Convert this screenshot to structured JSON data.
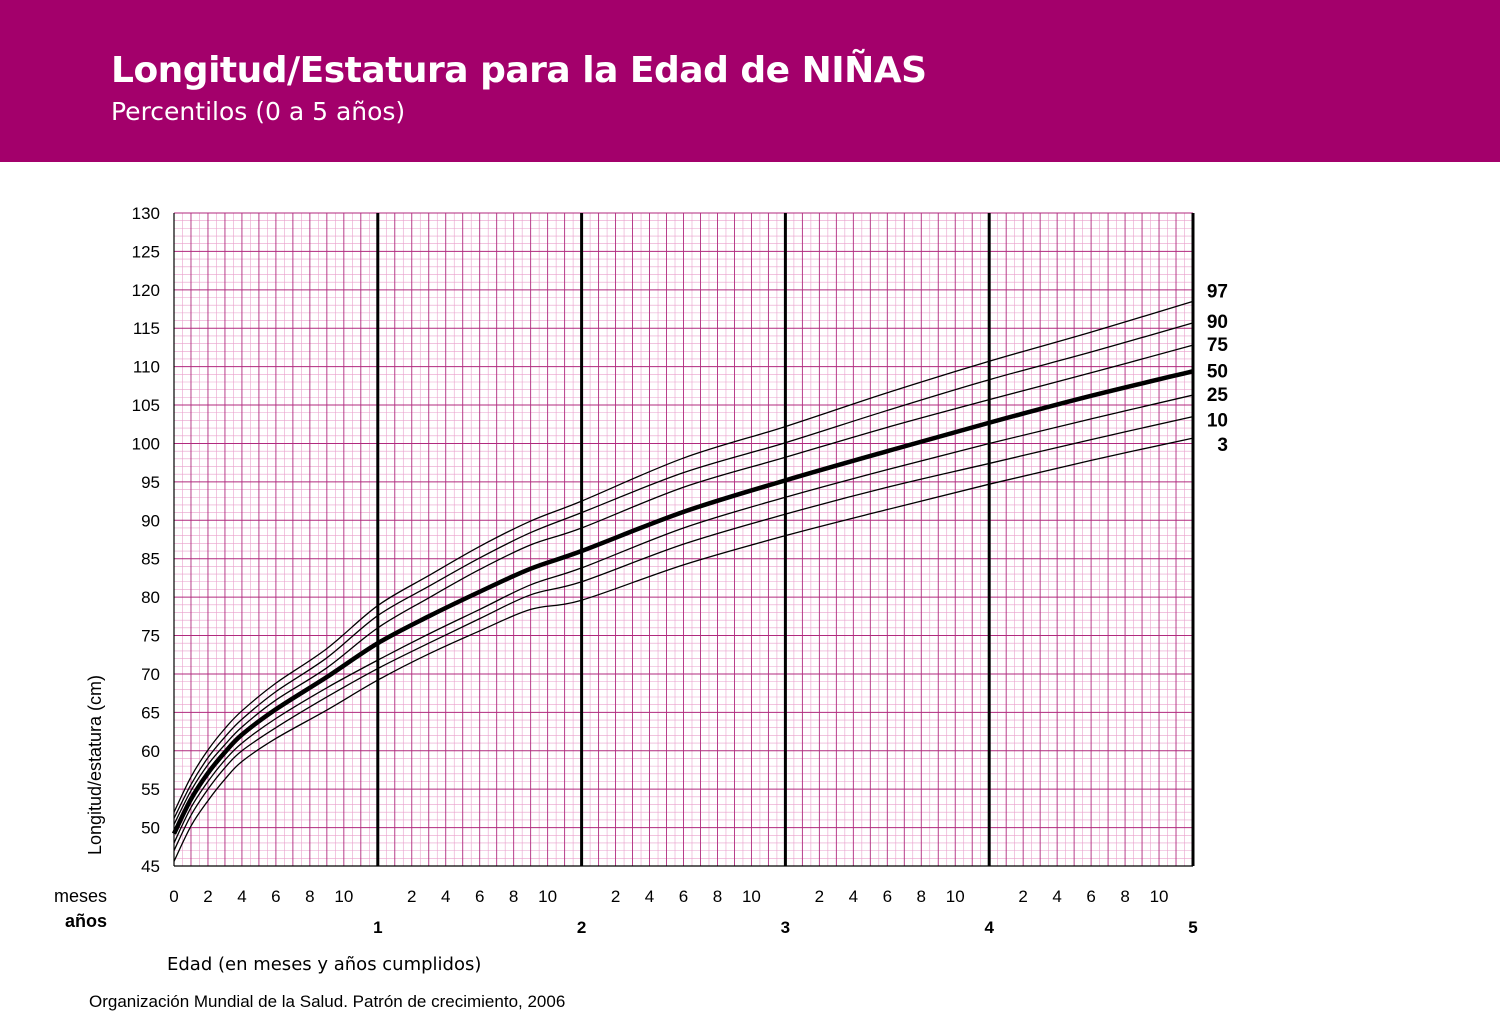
{
  "colors": {
    "header_bg": "#a3006b",
    "grid_minor": "#e9a0cc",
    "grid_major": "#b02a7e",
    "curve": "#000000"
  },
  "header": {
    "title": "Longitud/Estatura para la Edad de NIÑAS",
    "subtitle": "Percentilos (0 a 5 años)"
  },
  "footer": {
    "source": "Organización Mundial de la Salud. Patrón de crecimiento, 2006"
  },
  "chart_data": {
    "type": "line",
    "ylabel": "Longitud/estatura (cm)",
    "xlabel": "Edad (en meses y años cumplidos)",
    "x_row_label_months": "meses",
    "x_row_label_years": "años",
    "xlim": [
      0,
      60
    ],
    "ylim": [
      45,
      130
    ],
    "y_ticks": [
      45,
      50,
      55,
      60,
      65,
      70,
      75,
      80,
      85,
      90,
      95,
      100,
      105,
      110,
      115,
      120,
      125,
      130
    ],
    "month_tick_labels": [
      {
        "month": 0,
        "label": "0"
      },
      {
        "month": 2,
        "label": "2"
      },
      {
        "month": 4,
        "label": "4"
      },
      {
        "month": 6,
        "label": "6"
      },
      {
        "month": 8,
        "label": "8"
      },
      {
        "month": 10,
        "label": "10"
      },
      {
        "month": 14,
        "label": "2"
      },
      {
        "month": 16,
        "label": "4"
      },
      {
        "month": 18,
        "label": "6"
      },
      {
        "month": 20,
        "label": "8"
      },
      {
        "month": 22,
        "label": "10"
      },
      {
        "month": 26,
        "label": "2"
      },
      {
        "month": 28,
        "label": "4"
      },
      {
        "month": 30,
        "label": "6"
      },
      {
        "month": 32,
        "label": "8"
      },
      {
        "month": 34,
        "label": "10"
      },
      {
        "month": 38,
        "label": "2"
      },
      {
        "month": 40,
        "label": "4"
      },
      {
        "month": 42,
        "label": "6"
      },
      {
        "month": 44,
        "label": "8"
      },
      {
        "month": 46,
        "label": "10"
      },
      {
        "month": 50,
        "label": "2"
      },
      {
        "month": 52,
        "label": "4"
      },
      {
        "month": 54,
        "label": "6"
      },
      {
        "month": 56,
        "label": "8"
      },
      {
        "month": 58,
        "label": "10"
      }
    ],
    "year_tick_labels": [
      {
        "month": 12,
        "label": "1"
      },
      {
        "month": 24,
        "label": "2"
      },
      {
        "month": 36,
        "label": "3"
      },
      {
        "month": 48,
        "label": "4"
      },
      {
        "month": 60,
        "label": "5"
      }
    ],
    "grid": true,
    "x": [
      0,
      1,
      2,
      3,
      4,
      6,
      9,
      12,
      15,
      18,
      21,
      24,
      30,
      36,
      42,
      48,
      54,
      60
    ],
    "series": [
      {
        "name": "97",
        "bold": false,
        "values": [
          52.0,
          56.6,
          60.1,
          62.9,
          65.2,
          68.8,
          73.3,
          78.9,
          82.8,
          86.6,
          89.9,
          92.5,
          98.1,
          102.2,
          106.6,
          110.7,
          114.5,
          118.5
        ]
      },
      {
        "name": "90",
        "bold": false,
        "values": [
          51.2,
          55.6,
          59.1,
          61.8,
          64.1,
          67.7,
          72.1,
          77.6,
          81.4,
          85.1,
          88.4,
          91.0,
          96.2,
          100.1,
          104.3,
          108.3,
          111.9,
          115.7
        ]
      },
      {
        "name": "75",
        "bold": false,
        "values": [
          50.4,
          54.8,
          58.2,
          60.8,
          63.1,
          66.6,
          70.8,
          76.0,
          79.9,
          83.6,
          86.8,
          89.0,
          94.3,
          98.2,
          102.1,
          105.7,
          109.2,
          112.8
        ]
      },
      {
        "name": "50",
        "bold": true,
        "values": [
          49.2,
          53.7,
          57.1,
          59.8,
          62.1,
          65.4,
          69.6,
          74.0,
          77.5,
          80.7,
          83.7,
          86.0,
          91.1,
          95.2,
          99.0,
          102.7,
          106.2,
          109.4
        ]
      },
      {
        "name": "25",
        "bold": false,
        "values": [
          48.0,
          52.6,
          56.0,
          58.8,
          61.0,
          64.2,
          68.2,
          71.8,
          75.2,
          78.4,
          81.6,
          83.8,
          89.0,
          93.0,
          96.6,
          100.0,
          103.2,
          106.3
        ]
      },
      {
        "name": "10",
        "bold": false,
        "values": [
          47.0,
          51.6,
          55.0,
          57.8,
          60.0,
          63.0,
          67.0,
          70.7,
          74.0,
          77.2,
          80.3,
          82.0,
          86.9,
          90.8,
          94.3,
          97.4,
          100.5,
          103.5
        ]
      },
      {
        "name": "3",
        "bold": false,
        "values": [
          45.6,
          50.2,
          53.5,
          56.3,
          58.6,
          61.6,
          65.3,
          69.2,
          72.6,
          75.6,
          78.4,
          79.6,
          84.2,
          88.0,
          91.4,
          94.7,
          97.8,
          100.7
        ]
      }
    ]
  }
}
